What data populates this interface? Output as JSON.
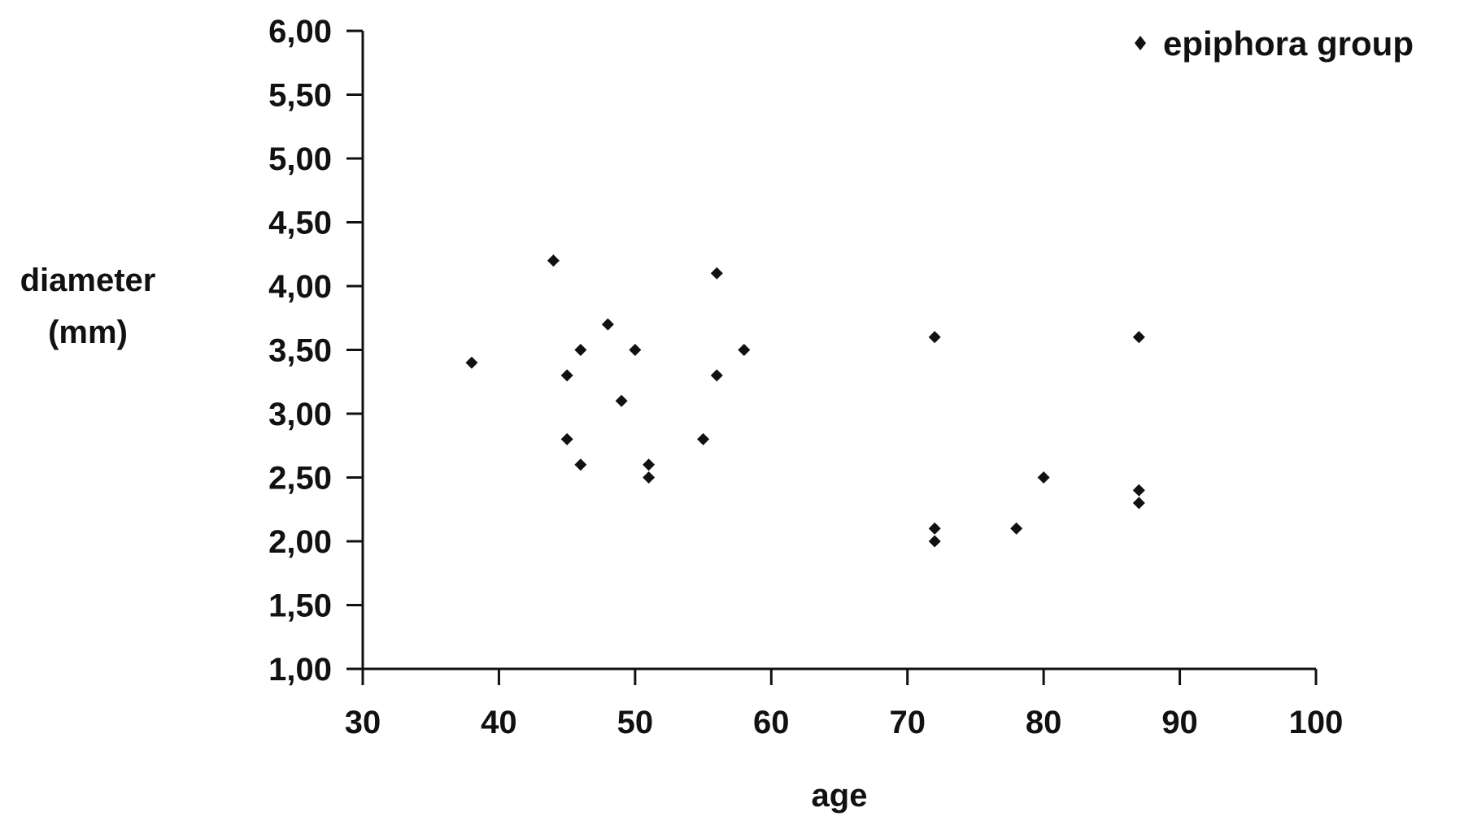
{
  "chart_data": {
    "type": "scatter",
    "title": "",
    "xlabel": "age",
    "ylabel_lines": [
      "diameter",
      "(mm)"
    ],
    "xlim": [
      30,
      100
    ],
    "ylim": [
      1.0,
      6.0
    ],
    "x_ticks": [
      30,
      40,
      50,
      60,
      70,
      80,
      90,
      100
    ],
    "x_tick_labels": [
      "30",
      "40",
      "50",
      "60",
      "70",
      "80",
      "90",
      "100"
    ],
    "y_ticks": [
      1.0,
      1.5,
      2.0,
      2.5,
      3.0,
      3.5,
      4.0,
      4.5,
      5.0,
      5.5,
      6.0
    ],
    "y_tick_labels": [
      "1,00",
      "1,50",
      "2,00",
      "2,50",
      "3,00",
      "3,50",
      "4,00",
      "4,50",
      "5,00",
      "5,50",
      "6,00"
    ],
    "grid": false,
    "legend_position": "top-right",
    "marker_color": "#111111",
    "series": [
      {
        "name": "epiphora group",
        "marker": "diamond",
        "points": [
          [
            38,
            3.4
          ],
          [
            44,
            4.2
          ],
          [
            45,
            3.3
          ],
          [
            45,
            2.8
          ],
          [
            46,
            3.5
          ],
          [
            46,
            2.6
          ],
          [
            48,
            3.7
          ],
          [
            49,
            3.1
          ],
          [
            50,
            3.5
          ],
          [
            51,
            2.6
          ],
          [
            51,
            2.5
          ],
          [
            55,
            2.8
          ],
          [
            56,
            4.1
          ],
          [
            56,
            3.3
          ],
          [
            58,
            3.5
          ],
          [
            72,
            3.6
          ],
          [
            72,
            2.1
          ],
          [
            72,
            2.0
          ],
          [
            78,
            2.1
          ],
          [
            80,
            2.5
          ],
          [
            87,
            3.6
          ],
          [
            87,
            2.4
          ],
          [
            87,
            2.3
          ]
        ]
      }
    ]
  }
}
